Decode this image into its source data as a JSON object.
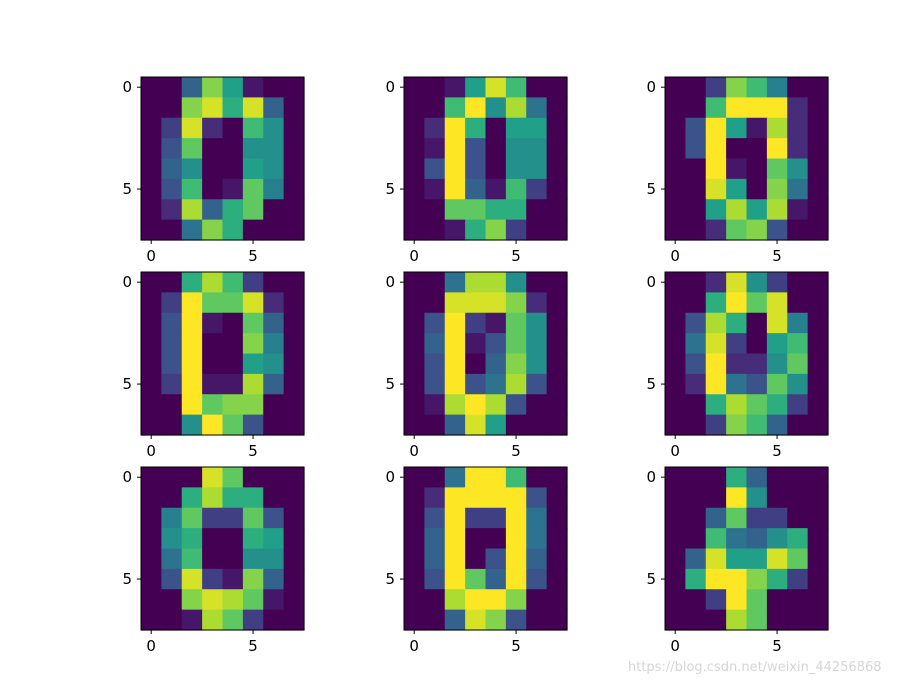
{
  "chart_data": {
    "type": "heatmap",
    "layout": "3x3 grid of 8x8 image subplots",
    "colormap": "viridis",
    "value_range": [
      0,
      16
    ],
    "xlim": [
      -0.5,
      7.5
    ],
    "ylim": [
      7.5,
      -0.5
    ],
    "x_ticks": [
      0,
      5
    ],
    "y_ticks": [
      0,
      5
    ],
    "tick_labels": [
      "0",
      "5"
    ],
    "panels": [
      [
        [
          0,
          0,
          5,
          13,
          9,
          1,
          0,
          0
        ],
        [
          0,
          0,
          13,
          15,
          10,
          15,
          5,
          0
        ],
        [
          0,
          3,
          15,
          2,
          0,
          11,
          8,
          0
        ],
        [
          0,
          4,
          12,
          0,
          0,
          8,
          8,
          0
        ],
        [
          0,
          5,
          8,
          0,
          0,
          9,
          8,
          0
        ],
        [
          0,
          4,
          11,
          0,
          1,
          12,
          7,
          0
        ],
        [
          0,
          2,
          14,
          5,
          10,
          12,
          0,
          0
        ],
        [
          0,
          0,
          6,
          13,
          10,
          0,
          0,
          0
        ]
      ],
      [
        [
          0,
          0,
          1,
          9,
          15,
          11,
          0,
          0
        ],
        [
          0,
          0,
          11,
          16,
          8,
          14,
          6,
          0
        ],
        [
          0,
          2,
          16,
          10,
          0,
          9,
          9,
          0
        ],
        [
          0,
          1,
          16,
          4,
          0,
          8,
          8,
          0
        ],
        [
          0,
          4,
          16,
          4,
          0,
          8,
          8,
          0
        ],
        [
          0,
          1,
          16,
          5,
          1,
          11,
          3,
          0
        ],
        [
          0,
          0,
          12,
          12,
          10,
          10,
          0,
          0
        ],
        [
          0,
          0,
          1,
          10,
          13,
          3,
          0,
          0
        ]
      ],
      [
        [
          0,
          0,
          3,
          13,
          11,
          7,
          0,
          0
        ],
        [
          0,
          0,
          11,
          16,
          16,
          16,
          2,
          0
        ],
        [
          0,
          4,
          16,
          9,
          1,
          14,
          2,
          0
        ],
        [
          0,
          4,
          16,
          0,
          0,
          16,
          2,
          0
        ],
        [
          0,
          0,
          16,
          1,
          0,
          12,
          8,
          0
        ],
        [
          0,
          0,
          15,
          9,
          0,
          13,
          6,
          0
        ],
        [
          0,
          0,
          9,
          14,
          9,
          14,
          1,
          0
        ],
        [
          0,
          0,
          2,
          12,
          13,
          4,
          0,
          0
        ]
      ],
      [
        [
          0,
          0,
          10,
          14,
          11,
          3,
          0,
          0
        ],
        [
          0,
          3,
          16,
          12,
          12,
          15,
          2,
          0
        ],
        [
          0,
          4,
          16,
          1,
          0,
          12,
          5,
          0
        ],
        [
          0,
          4,
          16,
          0,
          0,
          13,
          7,
          0
        ],
        [
          0,
          4,
          16,
          0,
          0,
          9,
          8,
          0
        ],
        [
          0,
          3,
          16,
          1,
          1,
          14,
          5,
          0
        ],
        [
          0,
          0,
          16,
          12,
          13,
          13,
          0,
          0
        ],
        [
          0,
          0,
          8,
          16,
          12,
          4,
          0,
          0
        ]
      ],
      [
        [
          0,
          0,
          6,
          14,
          14,
          8,
          0,
          0
        ],
        [
          0,
          0,
          15,
          15,
          15,
          13,
          2,
          0
        ],
        [
          0,
          4,
          16,
          3,
          1,
          12,
          8,
          0
        ],
        [
          0,
          5,
          16,
          1,
          4,
          12,
          8,
          0
        ],
        [
          0,
          4,
          16,
          0,
          5,
          13,
          8,
          0
        ],
        [
          0,
          4,
          16,
          4,
          6,
          14,
          4,
          0
        ],
        [
          0,
          1,
          14,
          16,
          14,
          4,
          0,
          0
        ],
        [
          0,
          0,
          5,
          15,
          9,
          0,
          0,
          0
        ]
      ],
      [
        [
          0,
          0,
          2,
          15,
          8,
          3,
          0,
          0
        ],
        [
          0,
          0,
          10,
          16,
          12,
          15,
          0,
          0
        ],
        [
          0,
          4,
          14,
          10,
          0,
          15,
          7,
          0
        ],
        [
          0,
          6,
          15,
          3,
          0,
          9,
          11,
          0
        ],
        [
          0,
          4,
          16,
          2,
          2,
          8,
          12,
          0
        ],
        [
          0,
          2,
          16,
          6,
          4,
          12,
          8,
          0
        ],
        [
          0,
          0,
          10,
          14,
          12,
          10,
          3,
          0
        ],
        [
          0,
          0,
          3,
          13,
          11,
          5,
          0,
          0
        ]
      ],
      [
        [
          0,
          0,
          0,
          15,
          12,
          0,
          0,
          0
        ],
        [
          0,
          0,
          10,
          14,
          10,
          10,
          0,
          0
        ],
        [
          0,
          7,
          12,
          3,
          3,
          12,
          4,
          0
        ],
        [
          0,
          8,
          10,
          0,
          0,
          10,
          9,
          0
        ],
        [
          0,
          6,
          11,
          0,
          0,
          8,
          8,
          0
        ],
        [
          0,
          4,
          15,
          3,
          1,
          13,
          5,
          0
        ],
        [
          0,
          0,
          13,
          15,
          14,
          12,
          1,
          0
        ],
        [
          0,
          0,
          1,
          14,
          12,
          3,
          0,
          0
        ]
      ],
      [
        [
          0,
          0,
          6,
          16,
          16,
          11,
          0,
          0
        ],
        [
          0,
          2,
          16,
          16,
          16,
          16,
          4,
          0
        ],
        [
          0,
          4,
          16,
          3,
          3,
          16,
          6,
          0
        ],
        [
          0,
          5,
          16,
          0,
          0,
          16,
          6,
          0
        ],
        [
          0,
          5,
          16,
          0,
          4,
          16,
          5,
          0
        ],
        [
          0,
          4,
          16,
          12,
          5,
          16,
          4,
          0
        ],
        [
          0,
          0,
          14,
          16,
          16,
          13,
          0,
          0
        ],
        [
          0,
          0,
          5,
          15,
          13,
          4,
          0,
          0
        ]
      ],
      [
        [
          0,
          0,
          0,
          10,
          5,
          0,
          0,
          0
        ],
        [
          0,
          0,
          0,
          16,
          8,
          0,
          0,
          0
        ],
        [
          0,
          0,
          5,
          12,
          3,
          3,
          0,
          0
        ],
        [
          0,
          0,
          11,
          6,
          5,
          8,
          10,
          0
        ],
        [
          0,
          5,
          15,
          9,
          9,
          15,
          12,
          0
        ],
        [
          0,
          10,
          16,
          16,
          13,
          10,
          3,
          0
        ],
        [
          0,
          0,
          3,
          16,
          12,
          0,
          0,
          0
        ],
        [
          0,
          0,
          0,
          14,
          12,
          0,
          0,
          0
        ]
      ]
    ]
  },
  "watermark": "https://blog.csdn.net/weixin_44256868"
}
